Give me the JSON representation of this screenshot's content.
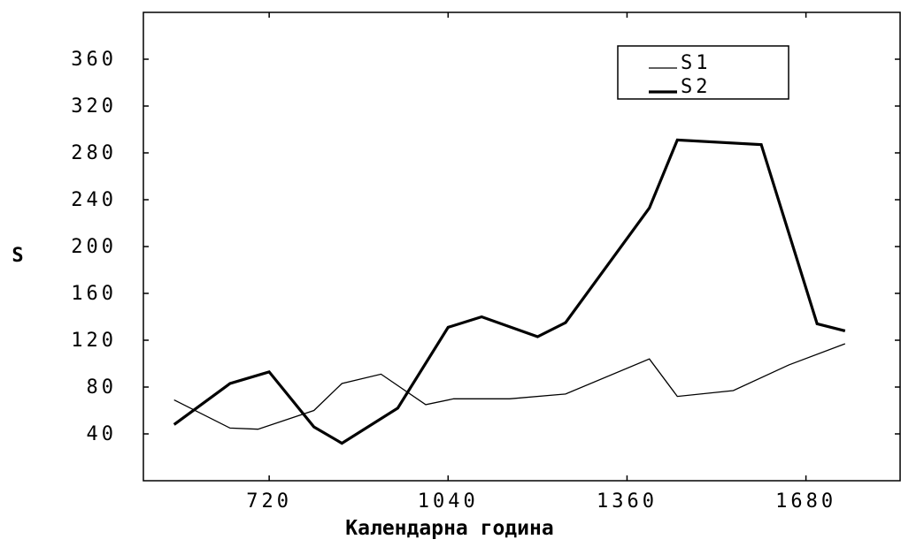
{
  "chart_data": {
    "type": "line",
    "xlabel": "Календарна година",
    "ylabel": "S",
    "xlim": [
      495,
      1850
    ],
    "ylim": [
      0,
      400
    ],
    "x_ticks": [
      720,
      1040,
      1360,
      1680
    ],
    "y_ticks": [
      40,
      80,
      120,
      160,
      200,
      240,
      280,
      320,
      360
    ],
    "grid": false,
    "legend_position": "top-right",
    "x": [
      550,
      650,
      700,
      750,
      800,
      850,
      900,
      950,
      1000,
      1050,
      1100,
      1150,
      1200,
      1250,
      1300,
      1350,
      1400,
      1450,
      1500,
      1550,
      1600,
      1650,
      1700,
      1750
    ],
    "series": [
      {
        "name": "S1",
        "color": "#000000",
        "line_weight": "thin",
        "points": [
          [
            550,
            69
          ],
          [
            650,
            45
          ],
          [
            700,
            44
          ],
          [
            800,
            60
          ],
          [
            850,
            83
          ],
          [
            920,
            91
          ],
          [
            1000,
            65
          ],
          [
            1050,
            70
          ],
          [
            1150,
            70
          ],
          [
            1250,
            74
          ],
          [
            1400,
            104
          ],
          [
            1450,
            72
          ],
          [
            1550,
            77
          ],
          [
            1650,
            99
          ],
          [
            1750,
            117
          ]
        ]
      },
      {
        "name": "S2",
        "color": "#000000",
        "line_weight": "thick",
        "points": [
          [
            550,
            48
          ],
          [
            650,
            83
          ],
          [
            720,
            93
          ],
          [
            800,
            46
          ],
          [
            850,
            32
          ],
          [
            950,
            62
          ],
          [
            1040,
            131
          ],
          [
            1100,
            140
          ],
          [
            1200,
            123
          ],
          [
            1250,
            135
          ],
          [
            1400,
            233
          ],
          [
            1450,
            291
          ],
          [
            1600,
            287
          ],
          [
            1700,
            134
          ],
          [
            1750,
            128
          ]
        ]
      }
    ]
  }
}
